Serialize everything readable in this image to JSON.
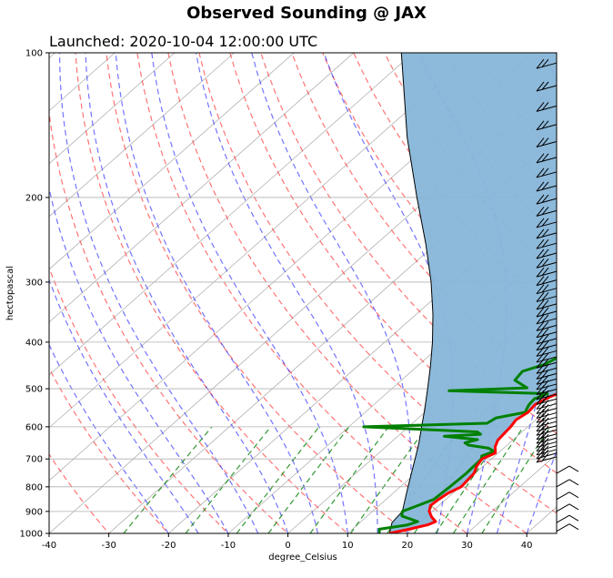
{
  "chart_data": {
    "type": "line",
    "title": "Observed Sounding @ JAX",
    "subtitle": "Launched: 2020-10-04 12:00:00 UTC",
    "xlabel": "degree_Celsius",
    "ylabel": "hectopascal",
    "xlim": [
      -40,
      45
    ],
    "ylim": [
      1000,
      100
    ],
    "y_scale": "log",
    "x_ticks": [
      -40,
      -30,
      -20,
      -10,
      0,
      10,
      20,
      30,
      40
    ],
    "y_ticks": [
      1000,
      900,
      800,
      700,
      600,
      500,
      400,
      300,
      200,
      100
    ],
    "grid": true,
    "series": [
      {
        "role": "temperature",
        "color": "#ff0000",
        "points": [
          [
            1000,
            17.0
          ],
          [
            980,
            19.5
          ],
          [
            960,
            21.8
          ],
          [
            945,
            22.5
          ],
          [
            925,
            21.0
          ],
          [
            900,
            19.5
          ],
          [
            875,
            18.6
          ],
          [
            850,
            18.8
          ],
          [
            825,
            19.2
          ],
          [
            800,
            20.2
          ],
          [
            775,
            20.0
          ],
          [
            750,
            19.8
          ],
          [
            725,
            18.9
          ],
          [
            700,
            18.4
          ],
          [
            680,
            19.5
          ],
          [
            660,
            18.3
          ],
          [
            640,
            17.5
          ],
          [
            620,
            17.3
          ],
          [
            600,
            17.1
          ],
          [
            580,
            16.7
          ],
          [
            560,
            17.3
          ],
          [
            540,
            17.0
          ],
          [
            520,
            18.0
          ],
          [
            505,
            19.5
          ],
          [
            495,
            19.5
          ],
          [
            480,
            18.1
          ],
          [
            460,
            17.3
          ],
          [
            440,
            16.8
          ],
          [
            420,
            16.3
          ],
          [
            400,
            16.2
          ],
          [
            375,
            15.2
          ],
          [
            350,
            14.0
          ],
          [
            325,
            12.8
          ],
          [
            300,
            10.5
          ],
          [
            275,
            8.6
          ],
          [
            250,
            6.0
          ],
          [
            225,
            4.0
          ],
          [
            200,
            2.0
          ],
          [
            180,
            0.2
          ],
          [
            160,
            -1.0
          ],
          [
            150,
            -1.8
          ],
          [
            140,
            -2.2
          ],
          [
            130,
            -2.8
          ],
          [
            120,
            -2.6
          ],
          [
            110,
            1.0
          ],
          [
            105,
            2.0
          ],
          [
            100,
            3.0
          ]
        ]
      },
      {
        "role": "dewpoint",
        "color": "#008000",
        "points": [
          [
            1000,
            15.3
          ],
          [
            980,
            14.5
          ],
          [
            960,
            18.5
          ],
          [
            945,
            19.5
          ],
          [
            920,
            15.8
          ],
          [
            900,
            15.0
          ],
          [
            875,
            16.5
          ],
          [
            850,
            18.0
          ],
          [
            800,
            18.3
          ],
          [
            750,
            18.5
          ],
          [
            700,
            18.3
          ],
          [
            690,
            17.8
          ],
          [
            675,
            19.0
          ],
          [
            665,
            17.5
          ],
          [
            655,
            13.5
          ],
          [
            648,
            12.5
          ],
          [
            638,
            14.0
          ],
          [
            628,
            7.8
          ],
          [
            622,
            13.5
          ],
          [
            615,
            12.5
          ],
          [
            600,
            -7.5
          ],
          [
            590,
            12.5
          ],
          [
            575,
            13.0
          ],
          [
            560,
            16.8
          ],
          [
            540,
            16.0
          ],
          [
            525,
            15.8
          ],
          [
            512,
            17.0
          ],
          [
            505,
            0.0
          ],
          [
            498,
            12.5
          ],
          [
            480,
            9.0
          ],
          [
            460,
            8.6
          ],
          [
            445,
            11.0
          ],
          [
            420,
            12.5
          ],
          [
            400,
            12.5
          ],
          [
            375,
            12.5
          ],
          [
            350,
            10.5
          ],
          [
            325,
            8.6
          ],
          [
            300,
            6.5
          ],
          [
            280,
            4.5
          ],
          [
            260,
            3.5
          ],
          [
            240,
            2.0
          ],
          [
            220,
            0.0
          ],
          [
            200,
            -3.0
          ],
          [
            180,
            -8.0
          ],
          [
            160,
            -13.0
          ],
          [
            150,
            -13.5
          ],
          [
            140,
            -12.0
          ],
          [
            130,
            -12.5
          ],
          [
            120,
            -11.5
          ],
          [
            110,
            -9.5
          ],
          [
            105,
            -9.0
          ],
          [
            100,
            -6.0
          ]
        ]
      },
      {
        "role": "parcel",
        "color": "#000000",
        "points": [
          [
            1000,
            17.0
          ],
          [
            950,
            15.4
          ],
          [
            900,
            15.0
          ],
          [
            850,
            13.2
          ],
          [
            800,
            11.3
          ],
          [
            750,
            9.3
          ],
          [
            700,
            7.2
          ],
          [
            650,
            4.9
          ],
          [
            600,
            2.2
          ],
          [
            550,
            -0.7
          ],
          [
            500,
            -4.0
          ],
          [
            450,
            -7.7
          ],
          [
            400,
            -12.0
          ],
          [
            350,
            -17.2
          ],
          [
            300,
            -23.6
          ],
          [
            250,
            -31.7
          ],
          [
            200,
            -42.0
          ],
          [
            150,
            -55.0
          ],
          [
            100,
            -72.0
          ]
        ]
      }
    ],
    "cape_shading": {
      "color": "#87b6d9",
      "between": [
        "parcel",
        "temperature"
      ]
    },
    "wind_barbs": "right edge, 100–1000 hPa",
    "reference_lines": {
      "dry_adiabats": "#ff0000",
      "moist_adiabats": "#0000ff",
      "mixing_ratio": "#008000",
      "isotherms": "#a0a0a0"
    }
  }
}
